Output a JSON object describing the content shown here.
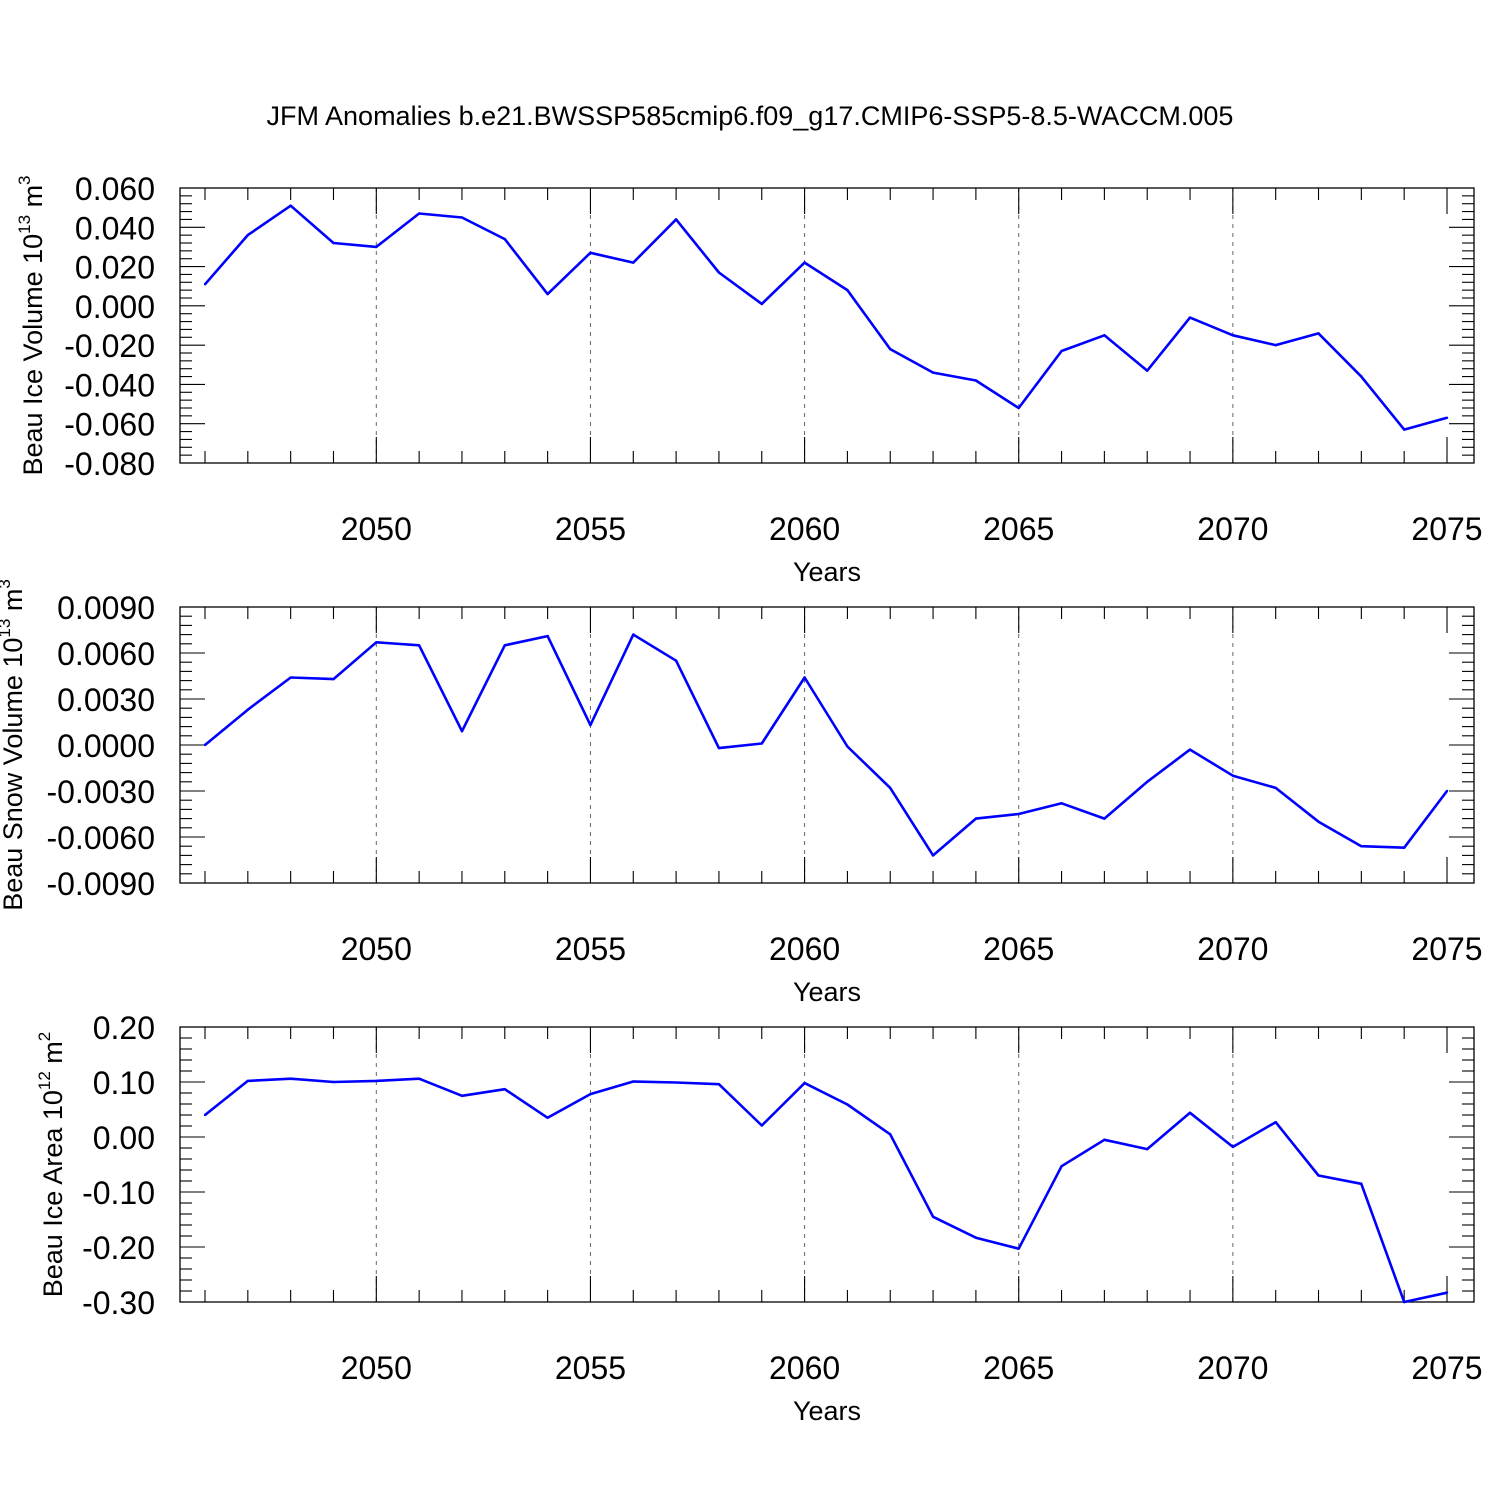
{
  "title": "JFM Anomalies b.e21.BWSSP585cmip6.f09_g17.CMIP6-SSP5-8.5-WACCM.005",
  "line_color": "#0000ff",
  "chart_data": [
    {
      "type": "line",
      "ylabel": "Beau Ice Volume 10",
      "ylabel_exp": "13",
      "ylabel_unit": " m",
      "ylabel_unit_exp": "3",
      "xlabel": "Years",
      "xlim": [
        2046,
        2075
      ],
      "ylim": [
        -0.08,
        0.06
      ],
      "x_ticks": [
        "2050",
        "2055",
        "2060",
        "2065",
        "2070",
        "2075"
      ],
      "y_ticks": [
        "0.060",
        "0.040",
        "0.020",
        "0.000",
        "-0.020",
        "-0.040",
        "-0.060",
        "-0.080"
      ],
      "grid": "dashed vertical at major x ticks",
      "x": [
        2046,
        2047,
        2048,
        2049,
        2050,
        2051,
        2052,
        2053,
        2054,
        2055,
        2056,
        2057,
        2058,
        2059,
        2060,
        2061,
        2062,
        2063,
        2064,
        2065,
        2066,
        2067,
        2068,
        2069,
        2070,
        2071,
        2072,
        2073,
        2074,
        2075
      ],
      "values": [
        0.011,
        0.036,
        0.051,
        0.032,
        0.03,
        0.047,
        0.045,
        0.034,
        0.006,
        0.027,
        0.022,
        0.044,
        0.017,
        0.001,
        0.022,
        0.008,
        -0.022,
        -0.034,
        -0.038,
        -0.052,
        -0.023,
        -0.015,
        -0.033,
        -0.006,
        -0.015,
        -0.02,
        -0.014,
        -0.036,
        -0.063,
        -0.057
      ]
    },
    {
      "type": "line",
      "ylabel": "Beau Snow Volume 10",
      "ylabel_exp": "13",
      "ylabel_unit": " m",
      "ylabel_unit_exp": "3",
      "xlabel": "Years",
      "xlim": [
        2046,
        2075
      ],
      "ylim": [
        -0.009,
        0.009
      ],
      "x_ticks": [
        "2050",
        "2055",
        "2060",
        "2065",
        "2070",
        "2075"
      ],
      "y_ticks": [
        "0.0090",
        "0.0060",
        "0.0030",
        "0.0000",
        "-0.0030",
        "-0.0060",
        "-0.0090"
      ],
      "grid": "dashed vertical at major x ticks",
      "x": [
        2046,
        2047,
        2048,
        2049,
        2050,
        2051,
        2052,
        2053,
        2054,
        2055,
        2056,
        2057,
        2058,
        2059,
        2060,
        2061,
        2062,
        2063,
        2064,
        2065,
        2066,
        2067,
        2068,
        2069,
        2070,
        2071,
        2072,
        2073,
        2074,
        2075
      ],
      "values": [
        0.0,
        0.0023,
        0.0044,
        0.0043,
        0.0067,
        0.0065,
        0.0009,
        0.0065,
        0.0071,
        0.0013,
        0.0072,
        0.0055,
        -0.0002,
        0.0001,
        0.0044,
        -0.0001,
        -0.0028,
        -0.0072,
        -0.0048,
        -0.0045,
        -0.0038,
        -0.0048,
        -0.0024,
        -0.0003,
        -0.002,
        -0.0028,
        -0.005,
        -0.0066,
        -0.0067,
        -0.003
      ]
    },
    {
      "type": "line",
      "ylabel": "Beau Ice Area 10",
      "ylabel_exp": "12",
      "ylabel_unit": " m",
      "ylabel_unit_exp": "2",
      "xlabel": "Years",
      "xlim": [
        2046,
        2075
      ],
      "ylim": [
        -0.3,
        0.2
      ],
      "x_ticks": [
        "2050",
        "2055",
        "2060",
        "2065",
        "2070",
        "2075"
      ],
      "y_ticks": [
        "0.20",
        "0.10",
        "0.00",
        "-0.10",
        "-0.20",
        "-0.30"
      ],
      "grid": "dashed vertical at major x ticks",
      "x": [
        2046,
        2047,
        2048,
        2049,
        2050,
        2051,
        2052,
        2053,
        2054,
        2055,
        2056,
        2057,
        2058,
        2059,
        2060,
        2061,
        2062,
        2063,
        2064,
        2065,
        2066,
        2067,
        2068,
        2069,
        2070,
        2071,
        2072,
        2073,
        2074,
        2075
      ],
      "values": [
        0.04,
        0.102,
        0.106,
        0.1,
        0.102,
        0.106,
        0.075,
        0.087,
        0.035,
        0.078,
        0.101,
        0.099,
        0.096,
        0.021,
        0.098,
        0.059,
        0.005,
        -0.145,
        -0.183,
        -0.203,
        -0.053,
        -0.005,
        -0.022,
        0.044,
        -0.018,
        0.027,
        -0.07,
        -0.085,
        -0.3,
        -0.283
      ]
    }
  ]
}
